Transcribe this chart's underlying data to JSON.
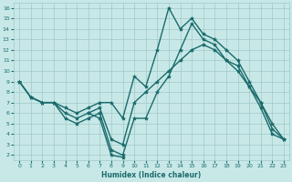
{
  "xlabel": "Humidex (Indice chaleur)",
  "xlim": [
    -0.5,
    23.5
  ],
  "ylim": [
    1.5,
    16.5
  ],
  "yticks": [
    2,
    3,
    4,
    5,
    6,
    7,
    8,
    9,
    10,
    11,
    12,
    13,
    14,
    15,
    16
  ],
  "xticks": [
    0,
    1,
    2,
    3,
    4,
    5,
    6,
    7,
    8,
    9,
    10,
    11,
    12,
    13,
    14,
    15,
    16,
    17,
    18,
    19,
    20,
    21,
    22,
    23
  ],
  "bg_color": "#c8e8e8",
  "grid_color": "#a0c8c8",
  "line_color": "#1a6b6b",
  "line_width": 1.0,
  "marker": "*",
  "marker_size": 3,
  "lines": [
    {
      "x": [
        0,
        1,
        2,
        3,
        4,
        5,
        6,
        7,
        8,
        9,
        10,
        11,
        12,
        13,
        14,
        15,
        16,
        17,
        18,
        19,
        20,
        21,
        22,
        23
      ],
      "y": [
        9,
        7.5,
        7,
        7,
        6.5,
        6,
        6.5,
        7,
        7,
        5.5,
        9.5,
        8.5,
        12,
        16,
        14,
        15,
        13.5,
        13,
        12,
        11,
        9,
        7,
        5,
        3.5
      ]
    },
    {
      "x": [
        0,
        1,
        2,
        3,
        4,
        5,
        6,
        7,
        8,
        9,
        10,
        11,
        12,
        13,
        14,
        15,
        16,
        17,
        18,
        19,
        20,
        21,
        22,
        23
      ],
      "y": [
        9,
        7.5,
        7,
        7,
        6,
        5.5,
        6,
        6.5,
        3.5,
        3,
        7,
        8,
        9,
        10,
        11,
        12,
        12.5,
        12,
        11,
        10.5,
        8.5,
        7,
        4.5,
        3.5
      ]
    },
    {
      "x": [
        0,
        1,
        2,
        3,
        4,
        5,
        6,
        7,
        8,
        9,
        10,
        11,
        12,
        13,
        14,
        15,
        16,
        17,
        18,
        19,
        20,
        21,
        22,
        23
      ],
      "y": [
        9,
        7.5,
        7,
        7,
        5.5,
        5,
        5.5,
        6,
        2.5,
        2,
        5.5,
        5.5,
        8,
        9.5,
        12,
        14.5,
        13,
        12.5,
        11,
        10,
        8.5,
        6.5,
        4,
        3.5
      ]
    },
    {
      "x": [
        6,
        7,
        8,
        9
      ],
      "y": [
        6,
        5.5,
        2,
        1.8
      ]
    }
  ]
}
